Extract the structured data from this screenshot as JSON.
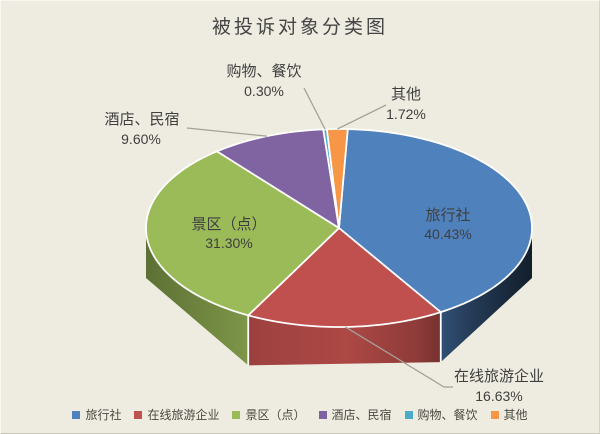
{
  "title": "被投诉对象分类图",
  "background_color": "#EEEBE0",
  "text_color": "#3F3F3F",
  "leader_line_color": "#A5A199",
  "chart_data": {
    "type": "pie",
    "style": "3d",
    "title": "被投诉对象分类图",
    "legend_position": "bottom",
    "data_labels": "category name + percent",
    "slices": [
      {
        "label": "旅行社",
        "value": 40.43,
        "percent_label": "40.43%",
        "color": "#4F81BD"
      },
      {
        "label": "在线旅游企业",
        "value": 16.63,
        "percent_label": "16.63%",
        "color": "#C0504D"
      },
      {
        "label": "景区（点）",
        "value": 31.3,
        "percent_label": "31.30%",
        "color": "#9BBB59"
      },
      {
        "label": "酒店、民宿",
        "value": 9.6,
        "percent_label": "9.60%",
        "color": "#8064A2"
      },
      {
        "label": "购物、餐饮",
        "value": 0.3,
        "percent_label": "0.30%",
        "color": "#4BACC6"
      },
      {
        "label": "其他",
        "value": 1.72,
        "percent_label": "1.72%",
        "color": "#F79646"
      }
    ]
  }
}
